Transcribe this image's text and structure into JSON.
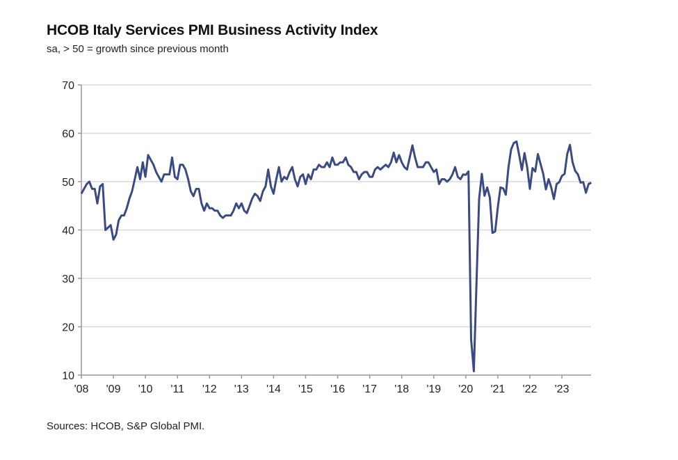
{
  "chart_data": {
    "type": "line",
    "title": "HCOB Italy Services PMI Business Activity Index",
    "subtitle": "sa, > 50 = growth since previous month",
    "source": "Sources: HCOB, S&P Global PMI.",
    "xlabel": "",
    "ylabel": "",
    "ylim": [
      10,
      70
    ],
    "yticks": [
      "70",
      "60",
      "50",
      "40",
      "30",
      "20",
      "10"
    ],
    "xticks": [
      "'08",
      "'09",
      "'10",
      "'11",
      "'12",
      "'13",
      "'14",
      "'15",
      "'16",
      "'17",
      "'18",
      "'19",
      "'20",
      "'21",
      "'22",
      "'23"
    ],
    "grid": "horizontal",
    "frequency": "monthly",
    "line_color": "#3b4a82",
    "series": [
      {
        "values_by_year": {
          "2008": [
            47.5,
            48.5,
            49.5,
            50,
            48.5,
            48.5,
            45.5,
            49,
            49.5,
            40,
            40.5,
            41
          ],
          "2009": [
            38,
            39,
            42,
            43,
            43,
            44.5,
            46.5,
            48,
            50.5,
            53,
            50.5,
            54
          ],
          "2010": [
            51,
            55.5,
            54.5,
            53.5,
            52,
            51,
            50,
            51.5,
            51.5,
            51.5,
            55,
            51
          ],
          "2011": [
            50.5,
            53.5,
            53.5,
            52.5,
            50.5,
            48,
            47,
            48.5,
            48.5,
            45.5,
            44,
            45.5
          ],
          "2012": [
            44.5,
            44.5,
            44,
            44,
            43,
            42.5,
            43,
            43,
            43,
            44,
            45.5,
            44.5
          ],
          "2013": [
            45.5,
            44,
            43.5,
            45,
            46.5,
            47.5,
            47,
            46,
            48,
            49,
            52.5,
            49
          ],
          "2014": [
            47.5,
            50.5,
            53,
            50,
            51,
            50.5,
            52,
            53,
            50.5,
            49,
            51,
            51.5
          ],
          "2015": [
            49.5,
            51.5,
            50.5,
            52.5,
            52.5,
            53.5,
            53,
            53,
            54,
            53,
            55,
            53.5
          ],
          "2016": [
            53.5,
            54,
            54,
            55,
            53.5,
            53,
            52,
            52,
            50.5,
            51.5,
            52,
            52
          ],
          "2017": [
            51,
            51,
            52.5,
            53,
            52.5,
            53,
            53.5,
            53,
            54,
            56,
            54,
            55.5
          ],
          "2018": [
            54,
            53,
            52.5,
            55,
            57.5,
            55,
            53,
            53,
            53,
            54,
            54,
            53
          ],
          "2019": [
            52,
            52.5,
            49.5,
            50.5,
            50.5,
            50,
            50.5,
            51.5,
            53,
            51,
            50.5,
            51.5
          ],
          "2020": [
            51.4,
            52.1,
            17.4,
            10.8,
            28.9,
            46.4,
            51.6,
            47.1,
            48.8,
            46.7,
            39.4,
            39.7
          ],
          "2021": [
            44.7,
            48.8,
            48.6,
            47.3,
            53.1,
            56.7,
            58.0,
            58.3,
            55.5,
            52.4,
            55.9,
            53.0
          ],
          "2022": [
            48.5,
            52.8,
            52.1,
            55.7,
            53.7,
            51.6,
            48.4,
            50.5,
            48.8,
            46.4,
            49.5,
            49.9
          ],
          "2023": [
            51.2,
            51.6,
            55.7,
            57.6,
            54.0,
            52.2,
            51.5,
            49.8,
            49.9,
            47.7,
            49.5,
            49.8
          ]
        }
      }
    ]
  }
}
